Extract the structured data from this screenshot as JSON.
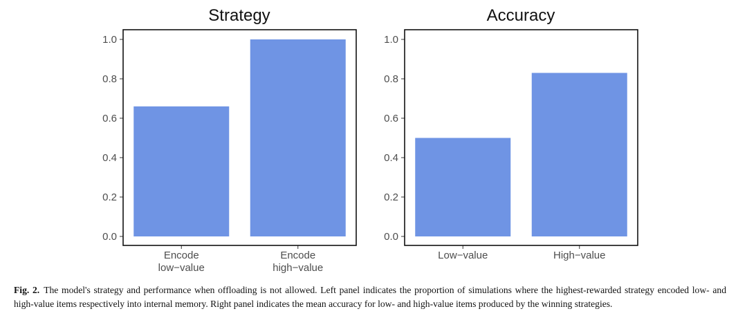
{
  "colors": {
    "bar": "#6f94e4",
    "frame": "#111111",
    "text": "#4d4d4d"
  },
  "caption": {
    "label": "Fig. 2.",
    "text": "The model's strategy and performance when offloading is not allowed. Left panel indicates the proportion of simulations where the highest-rewarded strategy encoded low- and high-value items respectively into internal memory. Right panel indicates the mean accuracy for low- and high-value items produced by the winning strategies."
  },
  "chart_data": [
    {
      "type": "bar",
      "title": "Strategy",
      "categories": [
        "Encode\nlow−value",
        "Encode\nhigh−value"
      ],
      "values": [
        0.66,
        1.0
      ],
      "ylim": [
        0,
        1.0
      ],
      "yticks": [
        "0.0",
        "0.2",
        "0.4",
        "0.6",
        "0.8",
        "1.0"
      ],
      "grid": false
    },
    {
      "type": "bar",
      "title": "Accuracy",
      "categories": [
        "Low−value",
        "High−value"
      ],
      "values": [
        0.5,
        0.83
      ],
      "ylim": [
        0,
        1.0
      ],
      "yticks": [
        "0.0",
        "0.2",
        "0.4",
        "0.6",
        "0.8",
        "1.0"
      ],
      "grid": false
    }
  ]
}
